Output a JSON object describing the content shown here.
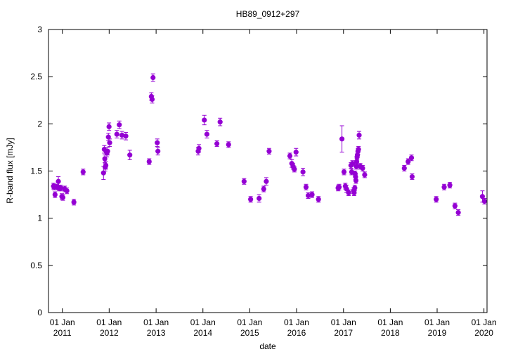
{
  "chart_data": {
    "type": "scatter",
    "title": "HB89_0912+297",
    "xlabel": "date",
    "ylabel": "R-band flux [mJy]",
    "ylim": [
      0,
      3
    ],
    "xlim": [
      "2010-09-15",
      "2020-01-25"
    ],
    "yticks": [
      "0",
      "0.5",
      "1",
      "1.5",
      "2",
      "2.5",
      "3"
    ],
    "xticks": [
      {
        "date": "2011-01-01",
        "line1": "01 Jan",
        "line2": "2011"
      },
      {
        "date": "2012-01-01",
        "line1": "01 Jan",
        "line2": "2012"
      },
      {
        "date": "2013-01-01",
        "line1": "01 Jan",
        "line2": "2013"
      },
      {
        "date": "2014-01-01",
        "line1": "01 Jan",
        "line2": "2014"
      },
      {
        "date": "2015-01-01",
        "line1": "01 Jan",
        "line2": "2015"
      },
      {
        "date": "2016-01-01",
        "line1": "01 Jan",
        "line2": "2016"
      },
      {
        "date": "2017-01-01",
        "line1": "01 Jan",
        "line2": "2017"
      },
      {
        "date": "2018-01-01",
        "line1": "01 Jan",
        "line2": "2018"
      },
      {
        "date": "2019-01-01",
        "line1": "01 Jan",
        "line2": "2019"
      },
      {
        "date": "2020-01-01",
        "line1": "01 Jan",
        "line2": "2020"
      }
    ],
    "grid": false,
    "marker_color": "#9400D3",
    "series": [
      {
        "points": [
          [
            "2010-10-24",
            1.34,
            0.03
          ],
          [
            "2010-10-30",
            1.33,
            0.03
          ],
          [
            "2010-11-05",
            1.25,
            0.03
          ],
          [
            "2010-11-20",
            1.33,
            0.03
          ],
          [
            "2010-12-01",
            1.39,
            0.05
          ],
          [
            "2010-12-08",
            1.32,
            0.03
          ],
          [
            "2010-12-20",
            1.32,
            0.03
          ],
          [
            "2010-12-28",
            1.23,
            0.03
          ],
          [
            "2011-01-05",
            1.22,
            0.03
          ],
          [
            "2011-01-20",
            1.31,
            0.03
          ],
          [
            "2011-02-05",
            1.29,
            0.03
          ],
          [
            "2011-04-01",
            1.17,
            0.03
          ],
          [
            "2011-06-12",
            1.49,
            0.03
          ],
          [
            "2011-11-18",
            1.48,
            0.07
          ],
          [
            "2011-11-24",
            1.73,
            0.04
          ],
          [
            "2011-11-28",
            1.63,
            0.04
          ],
          [
            "2011-12-01",
            1.54,
            0.04
          ],
          [
            "2011-12-06",
            1.56,
            0.04
          ],
          [
            "2011-12-14",
            1.69,
            0.04
          ],
          [
            "2011-12-20",
            1.71,
            0.04
          ],
          [
            "2011-12-26",
            1.86,
            0.04
          ],
          [
            "2011-12-31",
            1.97,
            0.04
          ],
          [
            "2012-01-05",
            1.8,
            0.04
          ],
          [
            "2012-03-01",
            1.89,
            0.04
          ],
          [
            "2012-03-20",
            1.99,
            0.04
          ],
          [
            "2012-04-10",
            1.88,
            0.04
          ],
          [
            "2012-05-10",
            1.87,
            0.04
          ],
          [
            "2012-06-10",
            1.67,
            0.05
          ],
          [
            "2012-11-08",
            1.6,
            0.03
          ],
          [
            "2012-11-25",
            2.29,
            0.04
          ],
          [
            "2012-12-01",
            2.26,
            0.04
          ],
          [
            "2012-12-08",
            2.49,
            0.04
          ],
          [
            "2013-01-10",
            1.8,
            0.04
          ],
          [
            "2013-01-15",
            1.71,
            0.04
          ],
          [
            "2013-11-25",
            1.71,
            0.04
          ],
          [
            "2013-12-01",
            1.74,
            0.04
          ],
          [
            "2014-01-12",
            2.04,
            0.05
          ],
          [
            "2014-02-01",
            1.89,
            0.04
          ],
          [
            "2014-04-20",
            1.79,
            0.03
          ],
          [
            "2014-05-15",
            2.02,
            0.04
          ],
          [
            "2014-07-20",
            1.78,
            0.03
          ],
          [
            "2014-11-18",
            1.39,
            0.03
          ],
          [
            "2015-01-08",
            1.2,
            0.03
          ],
          [
            "2015-03-15",
            1.21,
            0.04
          ],
          [
            "2015-04-20",
            1.31,
            0.03
          ],
          [
            "2015-05-10",
            1.39,
            0.04
          ],
          [
            "2015-06-01",
            1.71,
            0.03
          ],
          [
            "2015-11-10",
            1.66,
            0.03
          ],
          [
            "2015-11-25",
            1.58,
            0.04
          ],
          [
            "2015-12-05",
            1.55,
            0.03
          ],
          [
            "2015-12-15",
            1.52,
            0.03
          ],
          [
            "2015-12-28",
            1.7,
            0.04
          ],
          [
            "2016-02-20",
            1.49,
            0.04
          ],
          [
            "2016-03-15",
            1.33,
            0.03
          ],
          [
            "2016-04-01",
            1.24,
            0.03
          ],
          [
            "2016-05-01",
            1.25,
            0.03
          ],
          [
            "2016-06-20",
            1.2,
            0.03
          ],
          [
            "2016-11-20",
            1.32,
            0.03
          ],
          [
            "2016-11-28",
            1.33,
            0.03
          ],
          [
            "2016-12-20",
            1.84,
            0.14
          ],
          [
            "2017-01-05",
            1.49,
            0.03
          ],
          [
            "2017-01-15",
            1.34,
            0.03
          ],
          [
            "2017-01-25",
            1.31,
            0.04
          ],
          [
            "2017-02-10",
            1.27,
            0.03
          ],
          [
            "2017-02-28",
            1.56,
            0.03
          ],
          [
            "2017-03-06",
            1.49,
            0.03
          ],
          [
            "2017-03-12",
            1.58,
            0.03
          ],
          [
            "2017-03-20",
            1.29,
            0.03
          ],
          [
            "2017-03-25",
            1.27,
            0.03
          ],
          [
            "2017-03-30",
            1.32,
            0.03
          ],
          [
            "2017-04-02",
            1.47,
            0.03
          ],
          [
            "2017-04-05",
            1.44,
            0.03
          ],
          [
            "2017-04-08",
            1.4,
            0.03
          ],
          [
            "2017-04-11",
            1.55,
            0.03
          ],
          [
            "2017-04-14",
            1.6,
            0.03
          ],
          [
            "2017-04-17",
            1.65,
            0.03
          ],
          [
            "2017-04-20",
            1.67,
            0.03
          ],
          [
            "2017-04-24",
            1.71,
            0.03
          ],
          [
            "2017-04-28",
            1.73,
            0.03
          ],
          [
            "2017-05-03",
            1.88,
            0.04
          ],
          [
            "2017-05-12",
            1.55,
            0.03
          ],
          [
            "2017-05-30",
            1.53,
            0.03
          ],
          [
            "2017-06-15",
            1.46,
            0.03
          ],
          [
            "2018-04-20",
            1.53,
            0.03
          ],
          [
            "2018-05-20",
            1.6,
            0.03
          ],
          [
            "2018-06-15",
            1.64,
            0.03
          ],
          [
            "2018-06-20",
            1.44,
            0.03
          ],
          [
            "2018-12-25",
            1.2,
            0.03
          ],
          [
            "2019-02-25",
            1.33,
            0.03
          ],
          [
            "2019-04-10",
            1.35,
            0.03
          ],
          [
            "2019-05-20",
            1.13,
            0.03
          ],
          [
            "2019-06-15",
            1.06,
            0.03
          ],
          [
            "2019-12-20",
            1.23,
            0.06
          ],
          [
            "2020-01-05",
            1.18,
            0.03
          ]
        ]
      }
    ]
  }
}
